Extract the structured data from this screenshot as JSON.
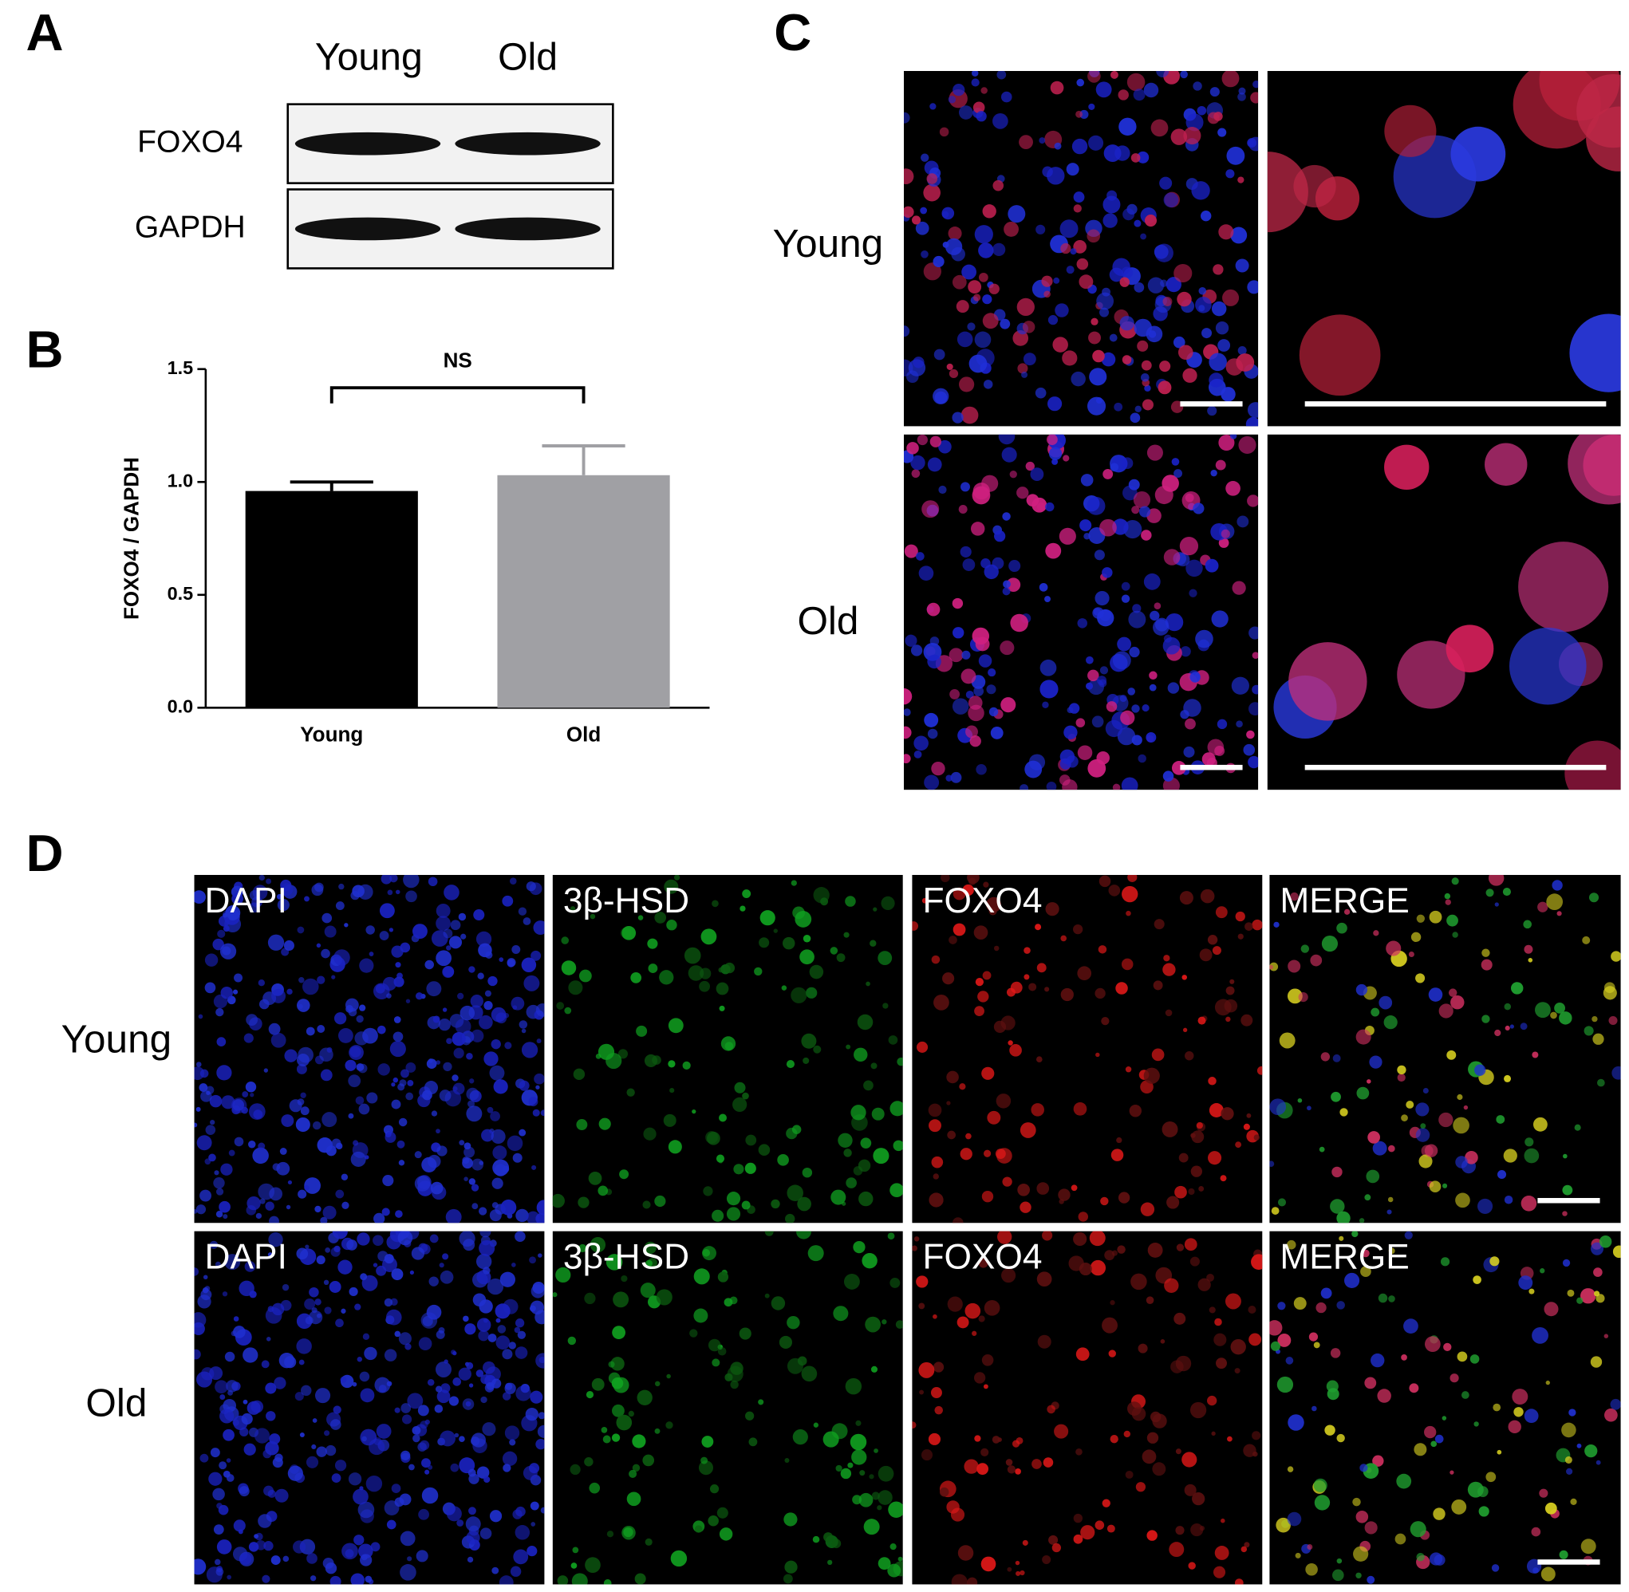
{
  "panels": {
    "a": {
      "letter": "A",
      "columns": [
        "Young",
        "Old"
      ],
      "rows": [
        "FOXO4",
        "GAPDH"
      ]
    },
    "b": {
      "letter": "B"
    },
    "c": {
      "letter": "C",
      "rows": [
        "Young",
        "Old"
      ]
    },
    "d": {
      "letter": "D",
      "rows": [
        "Young",
        "Old"
      ],
      "channels": [
        "DAPI",
        "3β-HSD",
        "FOXO4",
        "MERGE"
      ]
    }
  },
  "chart_data": {
    "type": "bar",
    "y_label": "FOXO4 / GAPDH",
    "categories": [
      "Young",
      "Old"
    ],
    "values": [
      0.96,
      1.03
    ],
    "errors": [
      0.04,
      0.13
    ],
    "colors": [
      "#000000",
      "#a0a0a4"
    ],
    "ylim": [
      0,
      1.5
    ],
    "yticks": [
      {
        "value": 0,
        "label": "0.0"
      },
      0.5,
      {
        "value": 1,
        "label": "1.0"
      },
      1.5
    ],
    "annotation": "NS"
  }
}
